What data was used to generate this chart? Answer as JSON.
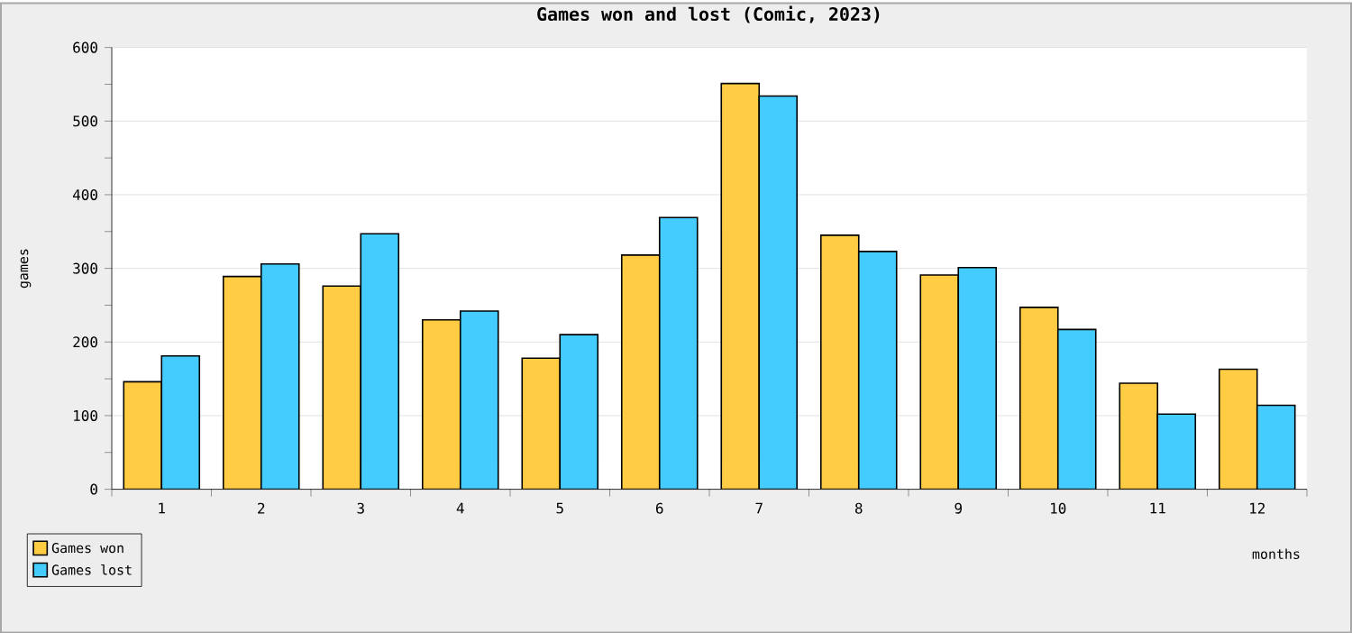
{
  "chart_data": {
    "type": "bar",
    "title": "Games won and lost (Comic, 2023)",
    "xlabel": "months",
    "ylabel": "games",
    "categories": [
      "1",
      "2",
      "3",
      "4",
      "5",
      "6",
      "7",
      "8",
      "9",
      "10",
      "11",
      "12"
    ],
    "series": [
      {
        "name": "Games won",
        "color": "#ffcc44",
        "values": [
          146,
          289,
          276,
          230,
          178,
          318,
          551,
          345,
          291,
          247,
          144,
          163
        ]
      },
      {
        "name": "Games lost",
        "color": "#44ccff",
        "values": [
          181,
          306,
          347,
          242,
          210,
          369,
          534,
          323,
          301,
          217,
          102,
          114
        ]
      }
    ],
    "ylim": [
      0,
      600
    ],
    "yticks": [
      0,
      100,
      200,
      300,
      400,
      500,
      600
    ],
    "grid": "y",
    "legend": "bottom left"
  }
}
